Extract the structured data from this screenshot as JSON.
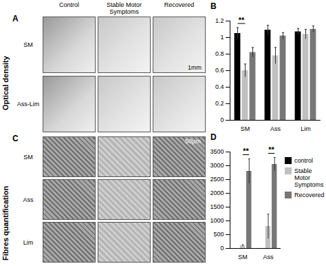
{
  "figure": {
    "panel_labels": [
      "A",
      "B",
      "C",
      "D"
    ],
    "columns": [
      "Control",
      "Stable Motor Symptoms",
      "Recovered"
    ],
    "row_titles": [
      "Optical density",
      "Fibres quantification"
    ],
    "A_rows": [
      "SM",
      "Ass-Lim"
    ],
    "C_rows": [
      "SM",
      "Ass",
      "Lim"
    ],
    "scale_bars": [
      "1mm",
      "50μm"
    ]
  },
  "chart_data": [
    {
      "type": "bar",
      "categories": [
        "SM",
        "Ass",
        "Lim"
      ],
      "series": [
        {
          "name": "control",
          "color": "#000000",
          "values": [
            1.05,
            1.09,
            1.07
          ],
          "errors": [
            0.07,
            0.06,
            0.04
          ]
        },
        {
          "name": "Stable Motor Symptoms",
          "color": "#c0c0c0",
          "values": [
            0.6,
            0.78,
            1.04
          ],
          "errors": [
            0.08,
            0.1,
            0.06
          ]
        },
        {
          "name": "Recovered",
          "color": "#777777",
          "values": [
            0.82,
            1.02,
            1.1
          ],
          "errors": [
            0.06,
            0.04,
            0.04
          ]
        }
      ],
      "ylim": [
        0,
        1.2
      ],
      "yticks": [
        0,
        0.2,
        0.4,
        0.6,
        0.8,
        1,
        1.2
      ],
      "annotations": [
        {
          "text": "**",
          "category": "SM",
          "between": [
            "control",
            "Stable Motor Symptoms"
          ]
        }
      ]
    },
    {
      "type": "bar",
      "categories": [
        "SM",
        "Ass"
      ],
      "series": [
        {
          "name": "control",
          "color": "#000000",
          "values": [
            0,
            0
          ],
          "errors": [
            0,
            0
          ]
        },
        {
          "name": "Stable Motor Symptoms",
          "color": "#c0c0c0",
          "values": [
            100,
            800
          ],
          "errors": [
            30,
            450
          ]
        },
        {
          "name": "Recovered",
          "color": "#777777",
          "values": [
            2800,
            3050
          ],
          "errors": [
            450,
            250
          ]
        }
      ],
      "ylim": [
        0,
        3500
      ],
      "yticks": [
        0,
        500,
        1000,
        1500,
        2000,
        2500,
        3000,
        3500
      ],
      "annotations": [
        {
          "text": "**",
          "category": "SM",
          "between": [
            "Stable Motor Symptoms",
            "Recovered"
          ]
        },
        {
          "text": "**",
          "category": "Ass",
          "between": [
            "Stable Motor Symptoms",
            "Recovered"
          ]
        }
      ],
      "legend": "right"
    }
  ]
}
